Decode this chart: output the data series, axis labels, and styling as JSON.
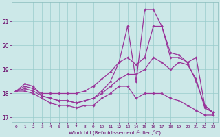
{
  "xlabel": "Windchill (Refroidissement éolien,°C)",
  "bg_color": "#cce8e8",
  "grid_color": "#99cccc",
  "line_color": "#993399",
  "hours": [
    0,
    1,
    2,
    3,
    4,
    5,
    6,
    7,
    8,
    9,
    10,
    11,
    12,
    13,
    14,
    15,
    16,
    17,
    18,
    19,
    20,
    21,
    22,
    23
  ],
  "line1": [
    18.1,
    18.4,
    18.3,
    17.9,
    17.8,
    17.7,
    17.7,
    17.6,
    17.7,
    17.8,
    18.1,
    18.5,
    19.3,
    20.8,
    18.5,
    21.5,
    21.5,
    20.8,
    19.5,
    19.5,
    19.3,
    18.5,
    17.5,
    17.2
  ],
  "line2": [
    18.1,
    18.3,
    18.2,
    18.0,
    18.0,
    18.0,
    18.0,
    18.0,
    18.1,
    18.3,
    18.6,
    18.9,
    19.3,
    19.5,
    19.2,
    19.5,
    20.8,
    20.8,
    19.7,
    19.6,
    19.3,
    19.5,
    17.5,
    17.2
  ],
  "line3": [
    18.1,
    18.2,
    18.1,
    17.9,
    17.8,
    17.7,
    17.7,
    17.6,
    17.7,
    17.8,
    18.0,
    18.3,
    18.6,
    18.8,
    18.8,
    19.0,
    19.5,
    19.3,
    19.0,
    19.3,
    19.2,
    18.6,
    17.4,
    17.2
  ],
  "line4": [
    18.1,
    18.1,
    18.0,
    17.8,
    17.6,
    17.5,
    17.5,
    17.4,
    17.5,
    17.5,
    17.8,
    18.0,
    18.3,
    18.3,
    17.8,
    18.0,
    18.0,
    18.0,
    17.8,
    17.7,
    17.5,
    17.3,
    17.1,
    17.1
  ],
  "ylim": [
    16.8,
    21.8
  ],
  "yticks": [
    17,
    18,
    19,
    20,
    21
  ],
  "xticks": [
    0,
    1,
    2,
    3,
    4,
    5,
    6,
    7,
    8,
    9,
    10,
    11,
    12,
    13,
    14,
    15,
    16,
    17,
    18,
    19,
    20,
    21,
    22,
    23
  ]
}
